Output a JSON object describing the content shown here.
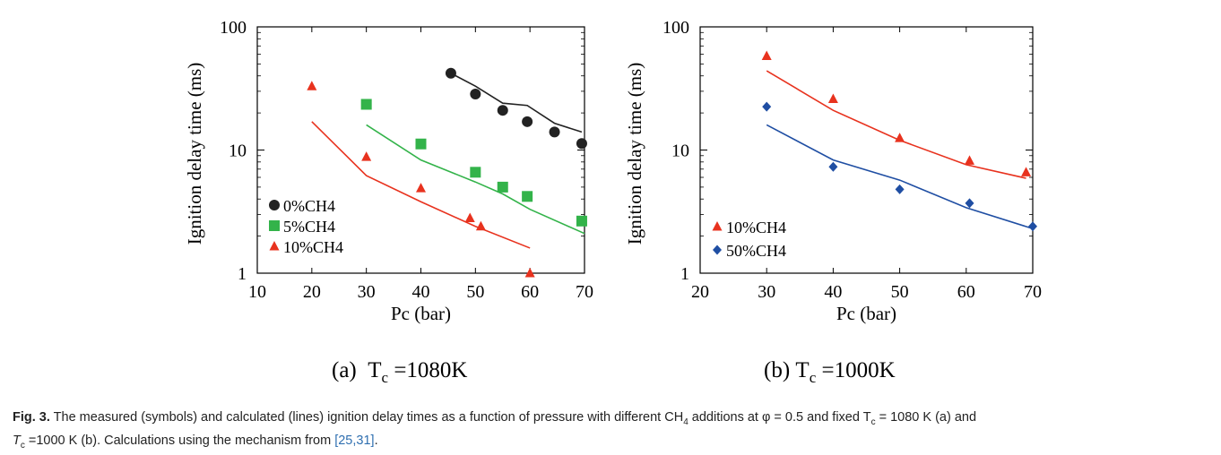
{
  "chart_data": [
    {
      "type": "scatter",
      "panel_label": "(a)",
      "panel_label_T": "T",
      "panel_label_sub": "c",
      "panel_label_value": " =1080K",
      "xlabel": "Pc (bar)",
      "ylabel": "Ignition delay time (ms)",
      "xlim": [
        10,
        70
      ],
      "ylim": [
        1,
        100
      ],
      "yscale": "log",
      "xticks": [
        "10",
        "20",
        "30",
        "40",
        "50",
        "60",
        "70"
      ],
      "yticks": [
        "1",
        "10",
        "100"
      ],
      "legend_position": "bottom-left",
      "series": [
        {
          "name": "0%CH4",
          "marker": "circle",
          "color": "#222222",
          "points": [
            [
              45.5,
              42
            ],
            [
              50,
              28.5
            ],
            [
              55,
              21
            ],
            [
              59.5,
              17
            ],
            [
              64.5,
              14
            ],
            [
              69.5,
              11.3
            ]
          ],
          "model_x": [
            45.5,
            50,
            55,
            59.5,
            64.5,
            69.5
          ],
          "model_y": [
            42,
            33,
            24,
            23,
            16.5,
            14
          ]
        },
        {
          "name": "5%CH4",
          "marker": "square",
          "color": "#33b34a",
          "points": [
            [
              30,
              23.5
            ],
            [
              40,
              11.2
            ],
            [
              50,
              6.6
            ],
            [
              55,
              5.0
            ],
            [
              59.5,
              4.2
            ],
            [
              69.5,
              2.65
            ]
          ],
          "model_x": [
            30,
            40,
            50,
            55,
            60,
            70
          ],
          "model_y": [
            16,
            8.3,
            5.5,
            4.4,
            3.3,
            2.1
          ]
        },
        {
          "name": "10%CH4",
          "marker": "triangle",
          "color": "#e8321e",
          "points": [
            [
              20,
              33
            ],
            [
              30,
              8.8
            ],
            [
              40,
              4.9
            ],
            [
              49,
              2.8
            ],
            [
              51,
              2.4
            ],
            [
              60,
              1.0
            ]
          ],
          "model_x": [
            20,
            30,
            40,
            50,
            60
          ],
          "model_y": [
            17,
            6.2,
            3.8,
            2.4,
            1.6
          ]
        }
      ]
    },
    {
      "type": "scatter",
      "panel_label": "(b)",
      "panel_label_T": "T",
      "panel_label_sub": "c",
      "panel_label_value": " =1000K",
      "xlabel": "Pc (bar)",
      "ylabel": "Ignition delay time (ms)",
      "xlim": [
        20,
        70
      ],
      "ylim": [
        1,
        100
      ],
      "yscale": "log",
      "xticks": [
        "20",
        "30",
        "40",
        "50",
        "60",
        "70"
      ],
      "yticks": [
        "1",
        "10",
        "100"
      ],
      "legend_position": "bottom-left",
      "series": [
        {
          "name": "10%CH4",
          "marker": "triangle",
          "color": "#e8321e",
          "points": [
            [
              30,
              58
            ],
            [
              40,
              26
            ],
            [
              50,
              12.5
            ],
            [
              60.5,
              8.2
            ],
            [
              69,
              6.6
            ]
          ],
          "model_x": [
            30,
            40,
            50,
            60,
            69
          ],
          "model_y": [
            44,
            21,
            12,
            7.6,
            5.9
          ]
        },
        {
          "name": "50%CH4",
          "marker": "diamond",
          "color": "#1f4ea3",
          "points": [
            [
              30,
              22.5
            ],
            [
              40,
              7.3
            ],
            [
              50,
              4.8
            ],
            [
              60.5,
              3.7
            ],
            [
              70,
              2.4
            ]
          ],
          "model_x": [
            30,
            40,
            50,
            60,
            70
          ],
          "model_y": [
            16,
            8.3,
            5.7,
            3.4,
            2.3
          ]
        }
      ]
    }
  ],
  "caption": {
    "fig_label": "Fig. 3.",
    "line1": " The measured (symbols) and calculated (lines) ignition delay times as a function of pressure with different CH",
    "sub4": "4",
    "line1b": " additions at φ = 0.5 and fixed T",
    "sub_c": "c",
    "line1c": " = 1080 K (a) and",
    "line2a": "T",
    "line2sub": "c",
    "line2b": " =1000 K (b). Calculations using the mechanism from ",
    "ref": "[25,31]",
    "line2c": "."
  }
}
